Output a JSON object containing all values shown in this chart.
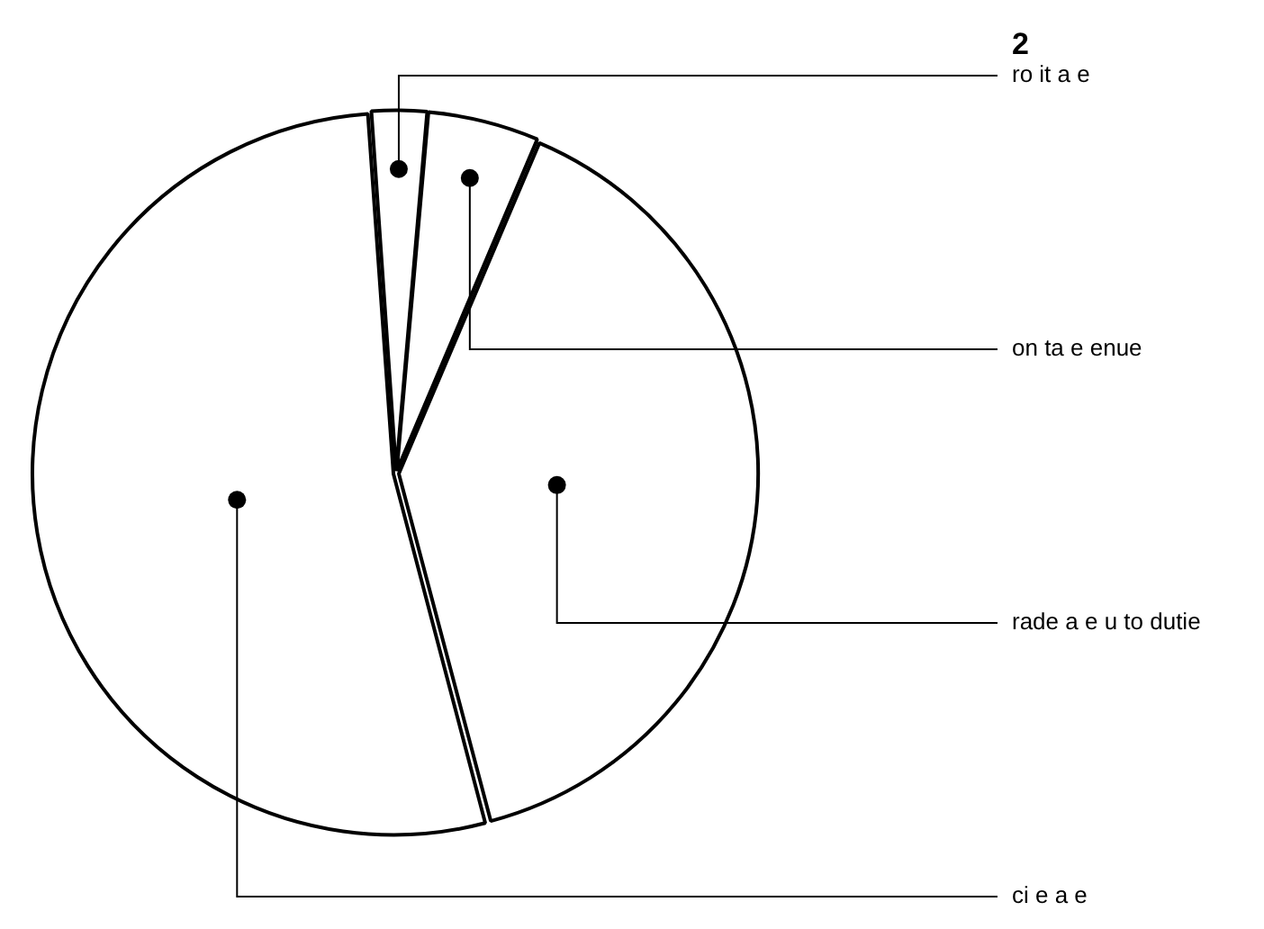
{
  "chart_data": {
    "type": "pie",
    "title": "2",
    "categories": [
      "ro it a e",
      "on ta e enue",
      "rade a e u to dutie",
      "ci e a e"
    ],
    "values": [
      2.5,
      5,
      39.5,
      53
    ],
    "colors": [
      "#ffffff",
      "#ffffff",
      "#ffffff",
      "#ffffff"
    ],
    "legend": false
  }
}
